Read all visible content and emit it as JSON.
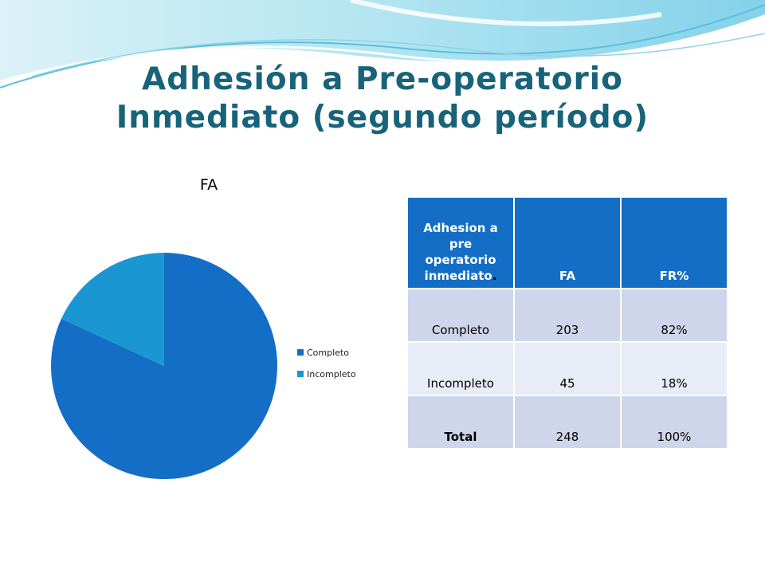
{
  "slide": {
    "title_line1": "Adhesión a Pre-operatorio",
    "title_line2": "Inmediato (segundo período)"
  },
  "chart_data": {
    "type": "pie",
    "title": "FA",
    "categories": [
      "Completo",
      "Incompleto"
    ],
    "values": [
      203,
      45
    ],
    "colors": [
      "#146ec6",
      "#1a96d3"
    ],
    "legend": "right"
  },
  "table": {
    "headers": [
      "Adhesion a pre operatorio inmediato",
      "FA",
      "FR%"
    ],
    "header_period": ".",
    "rows": [
      [
        "Completo",
        "203",
        "82%"
      ],
      [
        "Incompleto",
        "45",
        "18%"
      ]
    ],
    "total": [
      "Total",
      "248",
      "100%"
    ]
  }
}
